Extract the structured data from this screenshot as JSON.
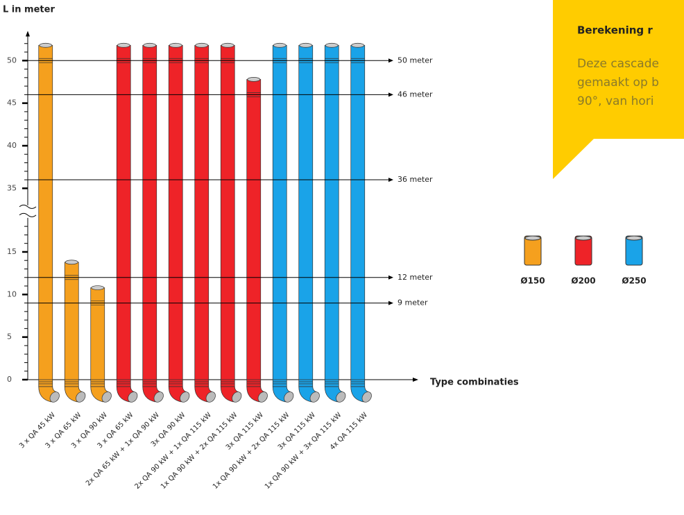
{
  "chart_data": {
    "type": "bar",
    "y_label": "L in meter",
    "x_label": "Type combinaties",
    "categories": [
      "3 x QA 45 kW",
      "3 x QA 65 kW",
      "3 x QA 90 kW",
      "3 x QA 65 kW",
      "2x QA 65 kW + 1x QA 90 kW",
      "3x QA 90 kW",
      "2x QA 90 kW + 1x QA 115 kW",
      "1x QA 90 kW + 2x QA 115 kW",
      "3x QA 115 kW",
      "1x QA 90 kW + 2x QA 115 kW",
      "3x QA 115 kW",
      "1x QA 90 kW + 3x QA 115 kW",
      "4x QA 115 kW"
    ],
    "series": [
      {
        "name": "Ø150",
        "color": "#f5a01e",
        "values": [
          50,
          12,
          9,
          null,
          null,
          null,
          null,
          null,
          null,
          null,
          null,
          null,
          null
        ]
      },
      {
        "name": "Ø200",
        "color": "#ee2328",
        "values": [
          null,
          null,
          null,
          50,
          50,
          50,
          50,
          50,
          46,
          null,
          null,
          null,
          null
        ]
      },
      {
        "name": "Ø250",
        "color": "#1aa3e8",
        "values": [
          null,
          null,
          null,
          null,
          null,
          null,
          null,
          null,
          null,
          50,
          50,
          50,
          50
        ]
      }
    ],
    "ylim": [
      0,
      53
    ],
    "axis_break": [
      19,
      33
    ],
    "yticks": [
      0,
      5,
      10,
      15,
      35,
      40,
      45,
      50
    ],
    "minor_yticks": [
      1,
      2,
      3,
      4,
      6,
      7,
      8,
      9,
      11,
      12,
      13,
      14,
      16,
      17,
      18,
      36,
      37,
      38,
      39,
      41,
      42,
      43,
      44,
      46,
      47,
      48,
      49,
      51,
      52
    ],
    "reference_lines": [
      {
        "value": 50,
        "label": "50 meter"
      },
      {
        "value": 46,
        "label": "46 meter"
      },
      {
        "value": 36,
        "label": "36 meter"
      },
      {
        "value": 12,
        "label": "12 meter"
      },
      {
        "value": 9,
        "label": "9 meter"
      }
    ]
  },
  "callout": {
    "title": "Berekening r",
    "lines": [
      "Deze cascade",
      "gemaakt op b",
      "90°, van hori"
    ]
  }
}
